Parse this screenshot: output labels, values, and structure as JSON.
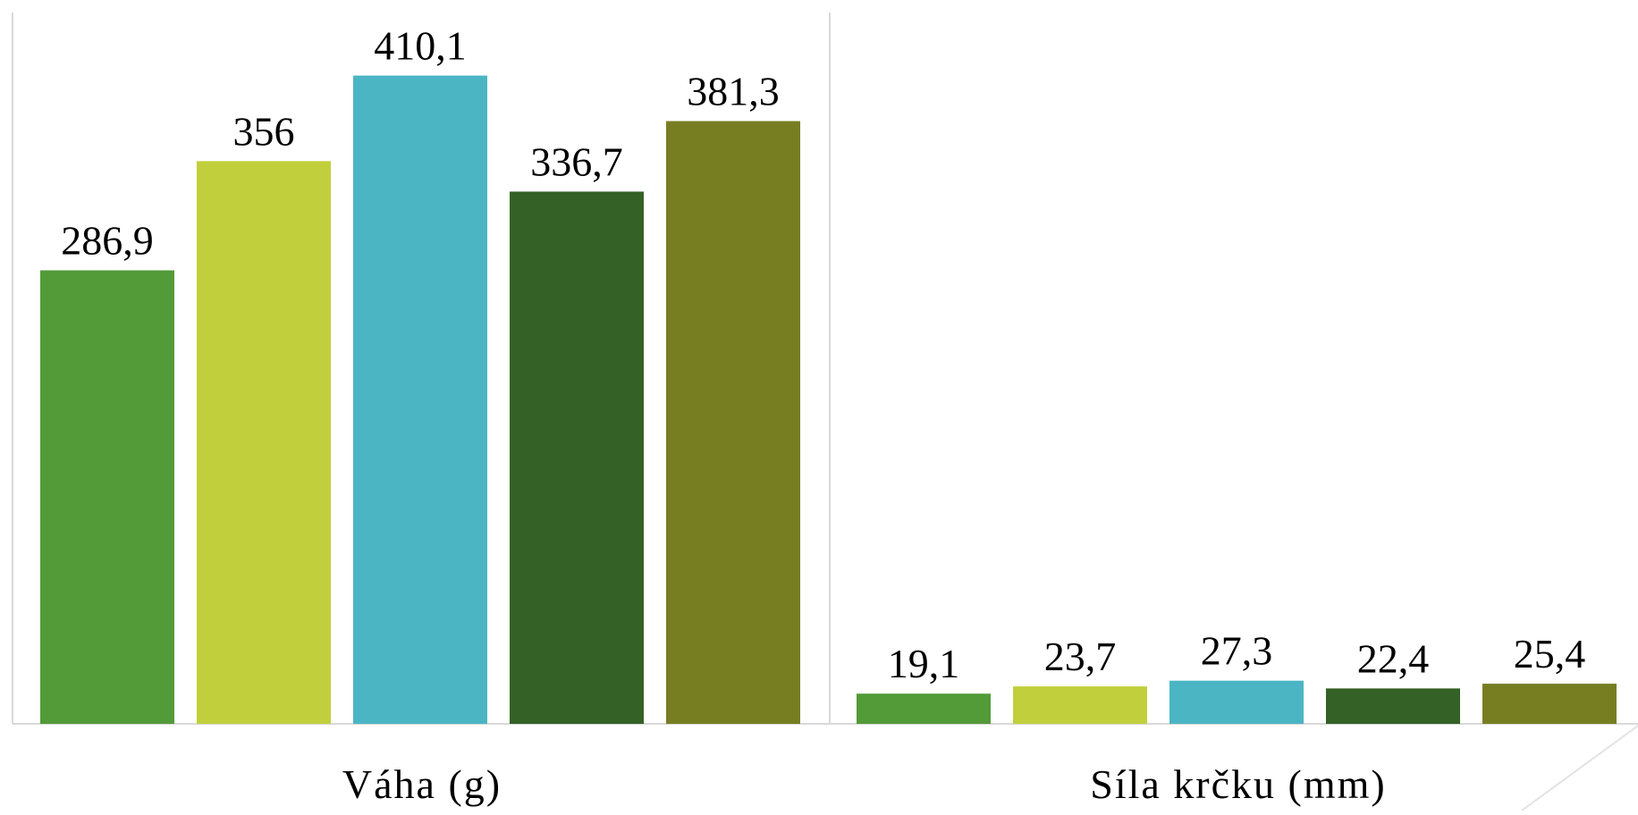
{
  "chart_data": {
    "type": "bar",
    "title": "",
    "xlabel": "",
    "ylabel": "",
    "categories": [
      "Váha (g)",
      "Síla krčku (mm)"
    ],
    "ylim": [
      0,
      450
    ],
    "grid": false,
    "legend": "none",
    "series": [
      {
        "color": "#529B38",
        "values": [
          286.9,
          19.1
        ],
        "labels": [
          "286,9",
          "19,1"
        ]
      },
      {
        "color": "#C2CF3D",
        "values": [
          356,
          23.7
        ],
        "labels": [
          "356",
          "23,7"
        ]
      },
      {
        "color": "#4BB5C4",
        "values": [
          410.1,
          27.3
        ],
        "labels": [
          "410,1",
          "27,3"
        ]
      },
      {
        "color": "#346126",
        "values": [
          336.7,
          22.4
        ],
        "labels": [
          "336,7",
          "22,4"
        ]
      },
      {
        "color": "#777E22",
        "values": [
          381.3,
          25.4
        ],
        "labels": [
          "381,3",
          "25,4"
        ]
      }
    ]
  }
}
